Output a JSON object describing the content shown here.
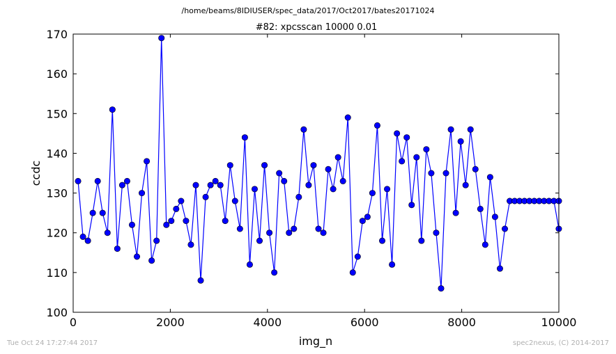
{
  "suptitle": "/home/beams/8IDIUSER/spec_data/2017/Oct2017/bates20171024",
  "footer": {
    "timestamp": "Tue Oct 24 17:27:44 2017",
    "credit": "spec2nexus, (C) 2014-2017"
  },
  "chart_data": {
    "type": "line",
    "title": "#82: xpcsscan 10000 0.01",
    "xlabel": "img_n",
    "ylabel": "ccdc",
    "xlim": [
      0,
      10000
    ],
    "ylim": [
      100,
      170
    ],
    "xticks": [
      0,
      2000,
      4000,
      6000,
      8000,
      10000
    ],
    "yticks": [
      100,
      110,
      120,
      130,
      140,
      150,
      160,
      170
    ],
    "grid": false,
    "colors": {
      "line": "#0000ff",
      "marker": "#0000ff",
      "marker_edge": "#000000",
      "axes": "#000000"
    },
    "series": [
      {
        "x": [
          101,
          202,
          303,
          404,
          505,
          606,
          707,
          808,
          909,
          1010,
          1111,
          1212,
          1313,
          1414,
          1515,
          1616,
          1717,
          1818,
          1919,
          2020,
          2121,
          2222,
          2323,
          2424,
          2525,
          2626,
          2727,
          2828,
          2929,
          3030,
          3131,
          3232,
          3333,
          3434,
          3535,
          3636,
          3737,
          3838,
          3939,
          4040,
          4141,
          4242,
          4343,
          4444,
          4545,
          4646,
          4747,
          4848,
          4949,
          5050,
          5151,
          5252,
          5353,
          5454,
          5555,
          5656,
          5757,
          5858,
          5959,
          6060,
          6161,
          6262,
          6363,
          6464,
          6565,
          6666,
          6767,
          6868,
          6969,
          7070,
          7171,
          7272,
          7373,
          7474,
          7575,
          7676,
          7777,
          7878,
          7979,
          8080,
          8181,
          8282,
          8383,
          8484,
          8585,
          8686,
          8787,
          8888,
          8989,
          9090,
          9191,
          9292,
          9393,
          9494,
          9595,
          9696,
          9797,
          9898,
          9999,
          10000
        ],
        "y": [
          133,
          119,
          118,
          125,
          133,
          125,
          120,
          151,
          116,
          132,
          133,
          122,
          114,
          130,
          138,
          113,
          118,
          169,
          122,
          123,
          126,
          128,
          123,
          117,
          132,
          108,
          129,
          132,
          133,
          132,
          123,
          137,
          128,
          121,
          144,
          112,
          131,
          118,
          137,
          120,
          110,
          135,
          133,
          120,
          121,
          129,
          146,
          132,
          137,
          121,
          120,
          136,
          131,
          139,
          133,
          149,
          110,
          114,
          123,
          124,
          130,
          147,
          118,
          131,
          112,
          145,
          138,
          144,
          127,
          139,
          118,
          141,
          135,
          120,
          106,
          135,
          146,
          125,
          143,
          132,
          146,
          136,
          126,
          117,
          134,
          124,
          111,
          121,
          128,
          128,
          128,
          128,
          128,
          128,
          128,
          128,
          128,
          128,
          121,
          128
        ]
      }
    ]
  }
}
